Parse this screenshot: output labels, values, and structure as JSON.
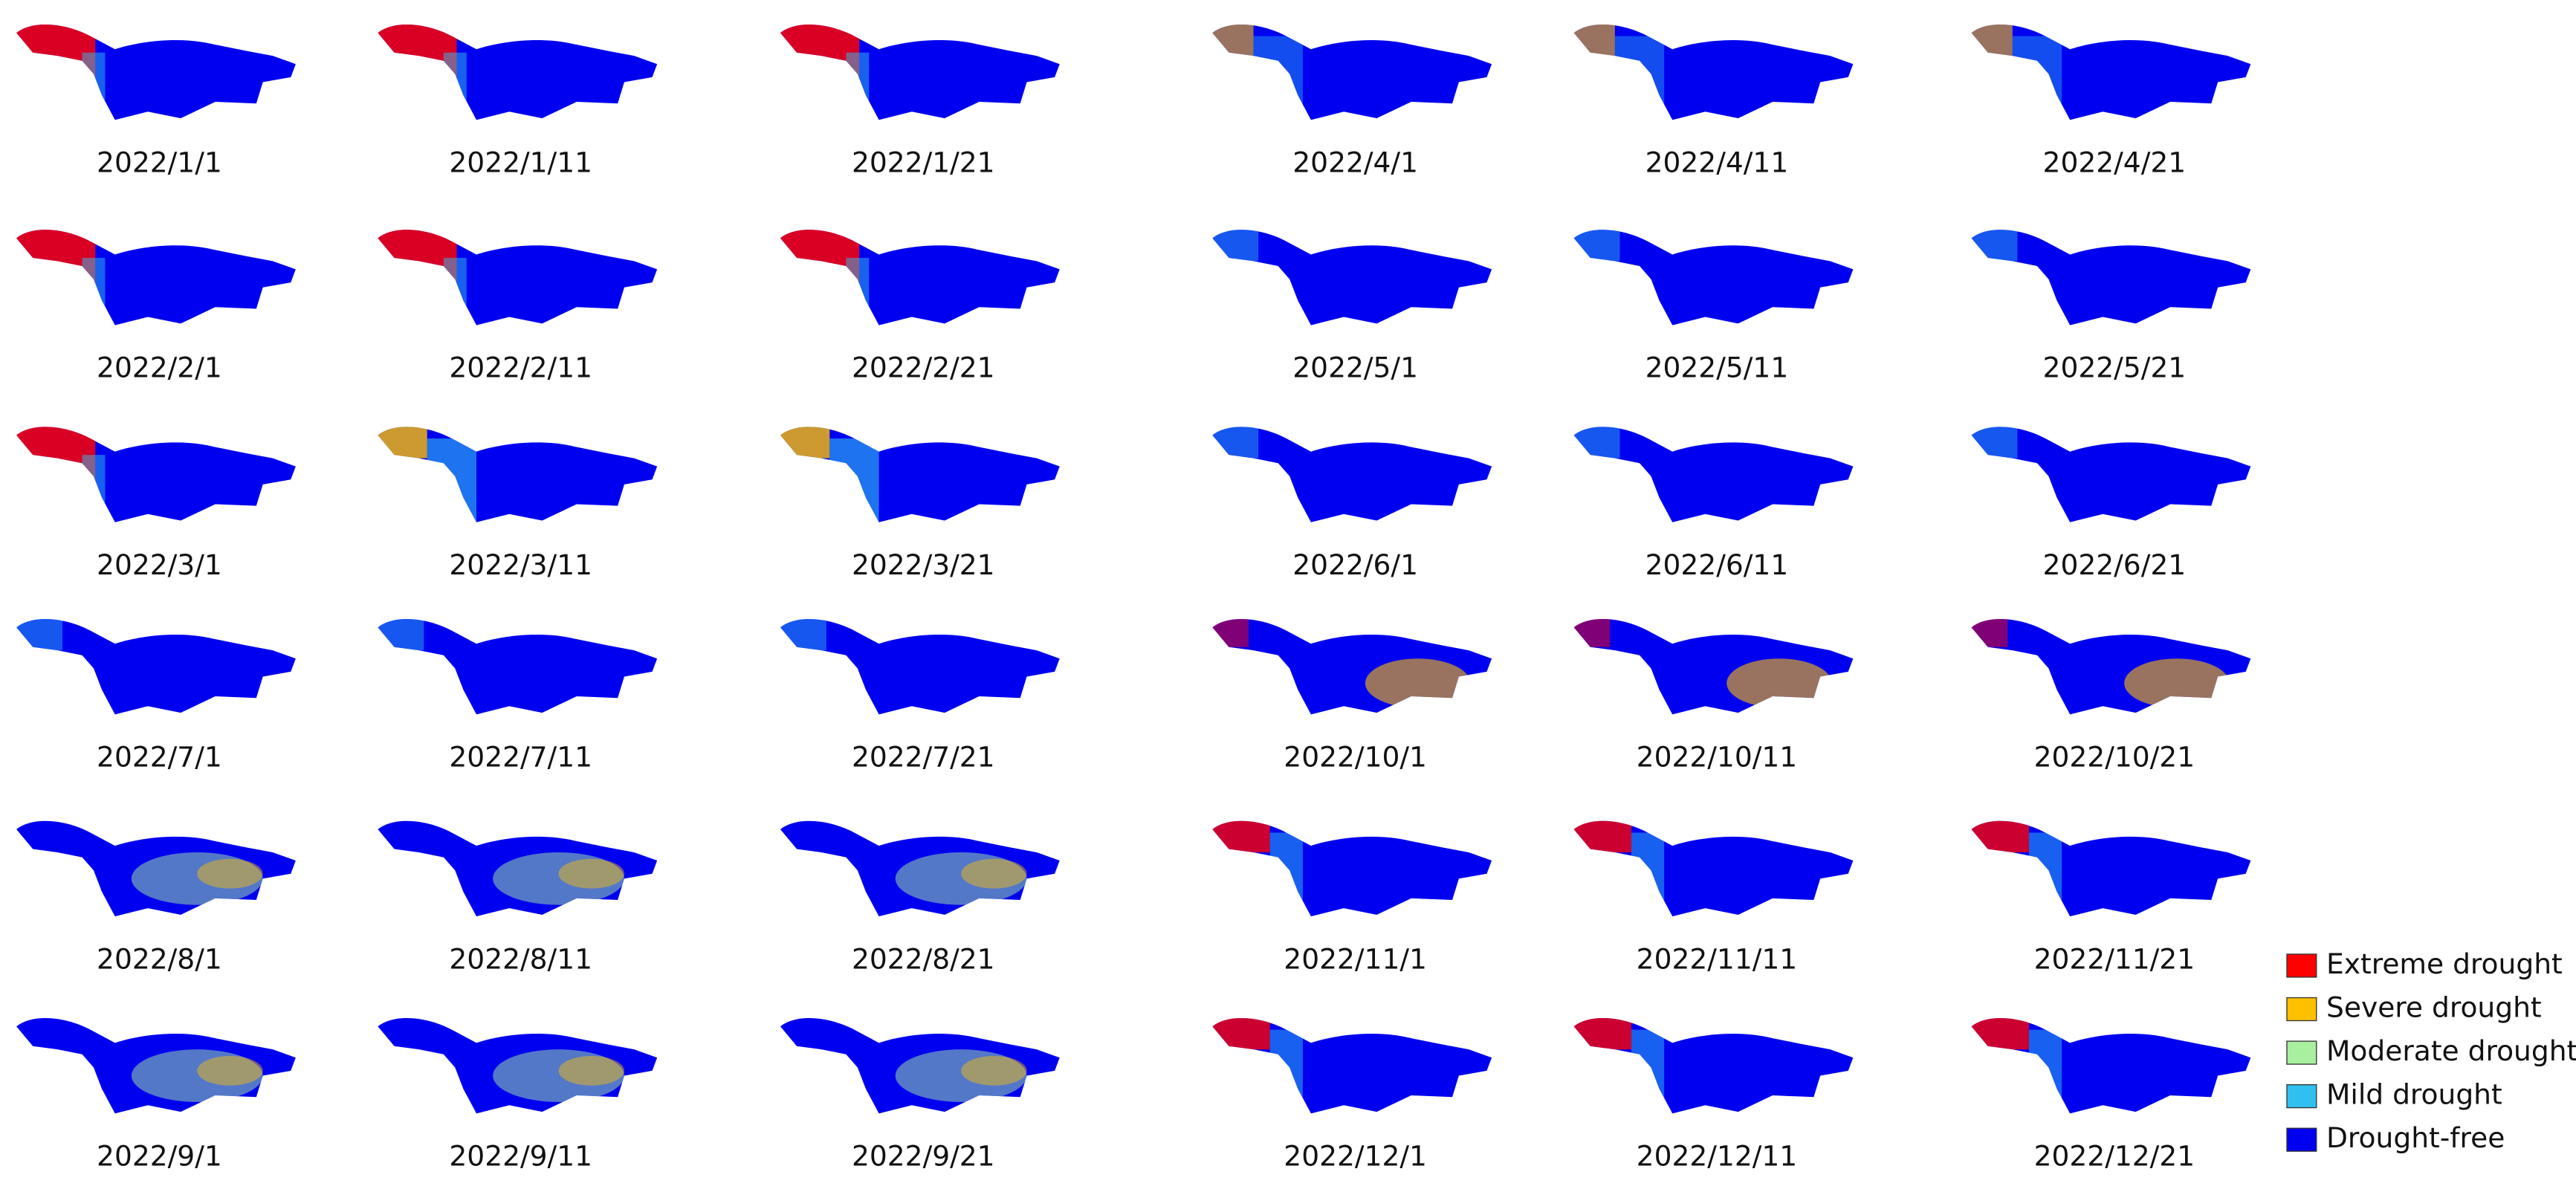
{
  "panels": [
    {
      "label": "2022/1/1"
    },
    {
      "label": "2022/1/11"
    },
    {
      "label": "2022/1/21"
    },
    {
      "label": "2022/2/1"
    },
    {
      "label": "2022/2/11"
    },
    {
      "label": "2022/2/21"
    },
    {
      "label": "2022/3/1"
    },
    {
      "label": "2022/3/11"
    },
    {
      "label": "2022/3/21"
    },
    {
      "label": "2022/4/1"
    },
    {
      "label": "2022/4/11"
    },
    {
      "label": "2022/4/21"
    },
    {
      "label": "2022/5/1"
    },
    {
      "label": "2022/5/11"
    },
    {
      "label": "2022/5/21"
    },
    {
      "label": "2022/6/1"
    },
    {
      "label": "2022/6/11"
    },
    {
      "label": "2022/6/21"
    },
    {
      "label": "2022/7/1"
    },
    {
      "label": "2022/7/11"
    },
    {
      "label": "2022/7/21"
    },
    {
      "label": "2022/8/1"
    },
    {
      "label": "2022/8/11"
    },
    {
      "label": "2022/8/21"
    },
    {
      "label": "2022/9/1"
    },
    {
      "label": "2022/9/11"
    },
    {
      "label": "2022/9/21"
    },
    {
      "label": "2022/10/1"
    },
    {
      "label": "2022/10/11"
    },
    {
      "label": "2022/10/21"
    },
    {
      "label": "2022/11/1"
    },
    {
      "label": "2022/11/11"
    },
    {
      "label": "2022/11/21"
    },
    {
      "label": "2022/12/1"
    },
    {
      "label": "2022/12/11"
    },
    {
      "label": "2022/12/21"
    }
  ],
  "legend": [
    {
      "label": "Extreme drought",
      "color": "#ff0000"
    },
    {
      "label": "Severe drought",
      "color": "#ffc000"
    },
    {
      "label": "Moderate drought",
      "color": "#a8f0a0"
    },
    {
      "label": "Mild drought",
      "color": "#30c0f0"
    },
    {
      "label": "Drought-free",
      "color": "#0000f0"
    }
  ]
}
